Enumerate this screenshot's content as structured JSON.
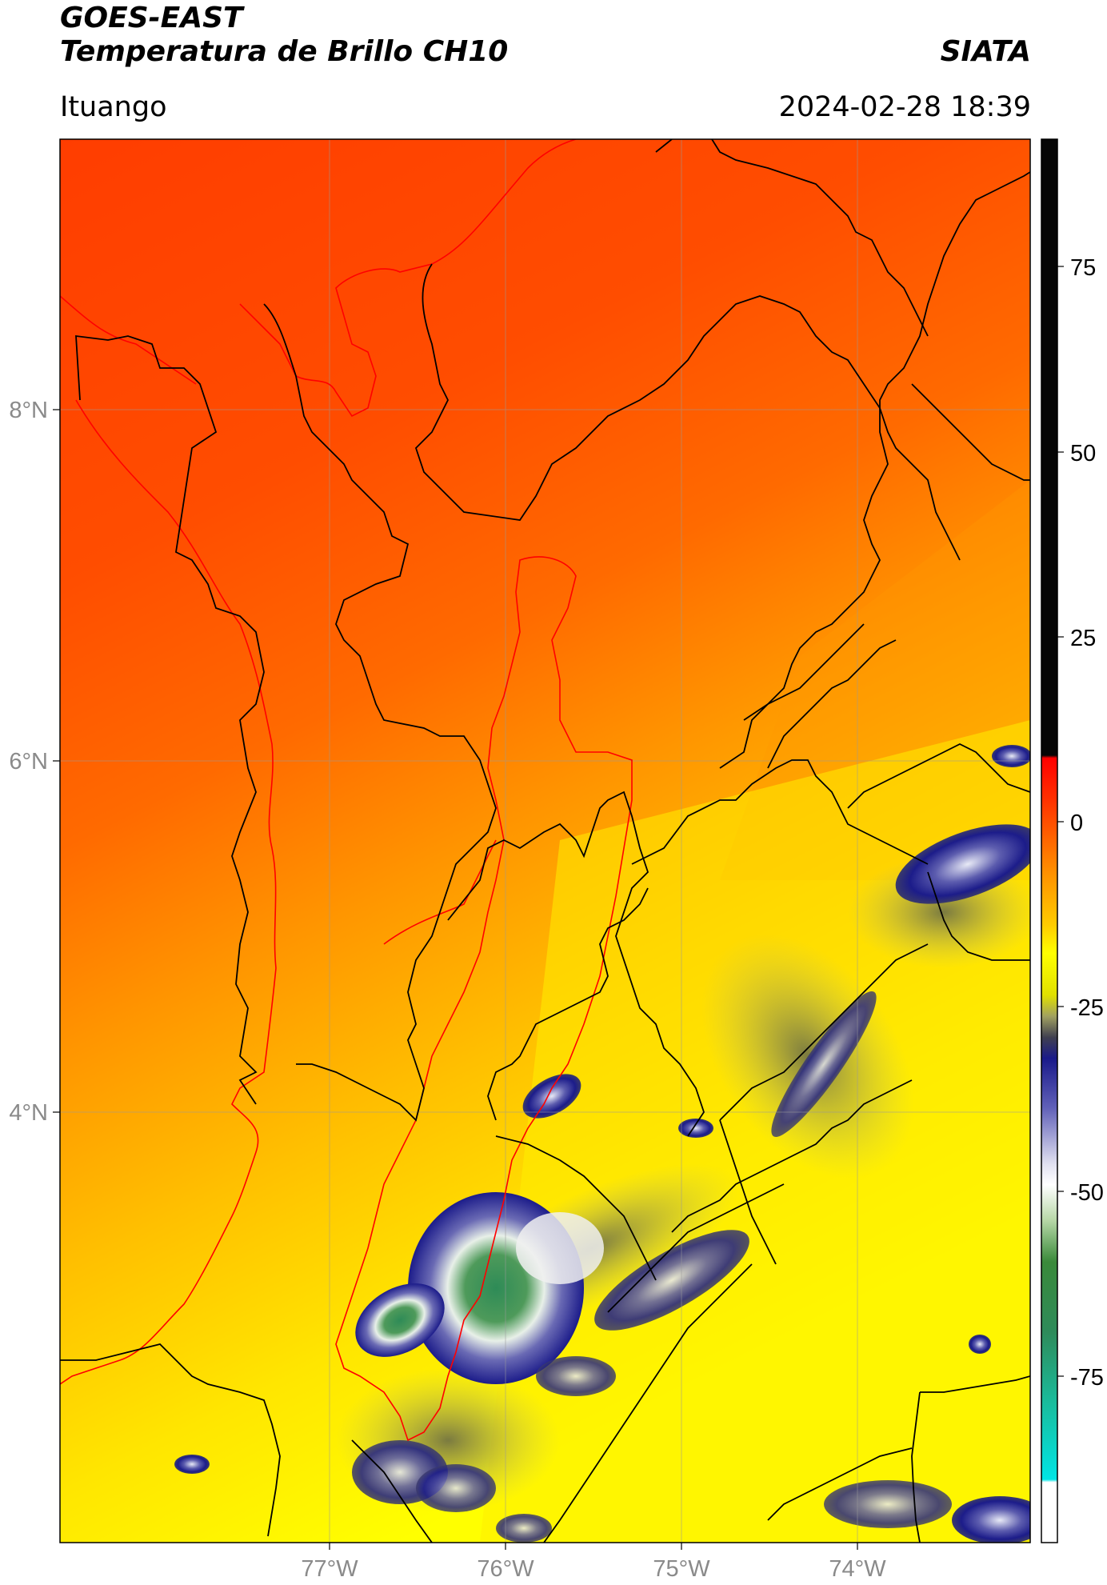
{
  "header": {
    "satellite": "GOES-EAST",
    "product": "Temperatura de Brillo CH10",
    "brand": "SIATA",
    "region": "Ituango",
    "datetime": "2024-02-28 18:39"
  },
  "map": {
    "lat_ticks": [
      "8°N",
      "6°N",
      "4°N"
    ],
    "lon_ticks": [
      "77°W",
      "76°W",
      "75°W",
      "74°W"
    ],
    "lon_range": [
      -78.5,
      -73
    ],
    "lat_range": [
      2.3,
      9.55
    ]
  },
  "colorbar": {
    "ticks": [
      "75",
      "50",
      "25",
      "0",
      "-25",
      "-50",
      "-75"
    ],
    "colors": {
      "black": "#050505",
      "red": "#ff1a00",
      "orange_red": "#ff4a00",
      "orange": "#ff8c00",
      "yellow": "#ffff00",
      "dark_navy": "#1a1a5a",
      "blue": "#1c1c9a",
      "white": "#ffffff",
      "green": "#2e7d32",
      "teal": "#1abc9c",
      "cyan": "#00e5e5"
    }
  },
  "colors": {
    "state_borders": "#000000",
    "basin_outline": "#ff0000",
    "gridlines": "#888888"
  }
}
